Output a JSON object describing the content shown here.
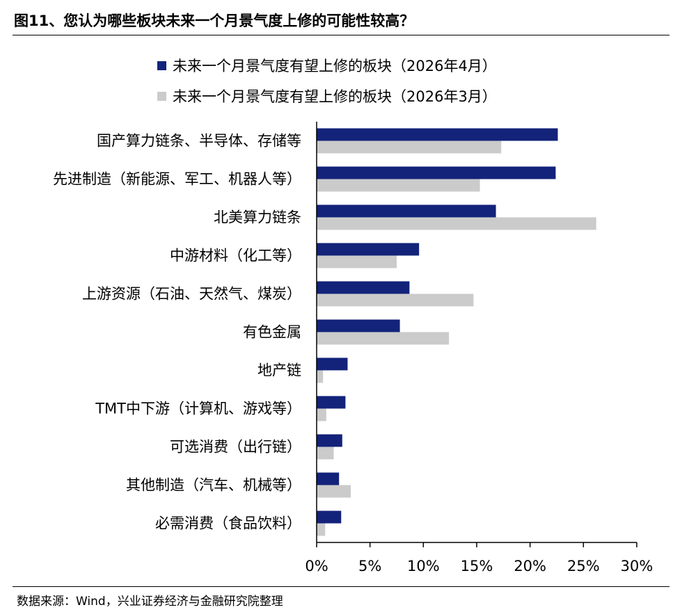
{
  "title": "图11、您认为哪些板块未来一个月景气度上修的可能性较高？",
  "source": "数据来源：Wind，兴业证券经济与金融研究院整理",
  "colors": {
    "series_1": "#13237a",
    "series_2": "#cbcbcb",
    "axis": "#000000"
  },
  "chart_data": {
    "type": "bar",
    "orientation": "horizontal",
    "categories": [
      "国产算力链条、半导体、存储等",
      "先进制造（新能源、军工、机器人等）",
      "北美算力链条",
      "中游材料（化工等）",
      "上游资源（石油、天然气、煤炭）",
      "有色金属",
      "地产链",
      "TMT中下游（计算机、游戏等）",
      "可选消费（出行链）",
      "其他制造（汽车、机械等）",
      "必需消费（食品饮料）"
    ],
    "series": [
      {
        "name": "未来一个月景气度有望上修的板块（2026年4月）",
        "values": [
          22.6,
          22.4,
          16.8,
          9.6,
          8.7,
          7.8,
          2.9,
          2.7,
          2.4,
          2.1,
          2.3
        ]
      },
      {
        "name": "未来一个月景气度有望上修的板块（2026年3月）",
        "values": [
          17.3,
          15.3,
          26.2,
          7.5,
          14.7,
          12.4,
          0.6,
          0.9,
          1.6,
          3.2,
          0.8
        ]
      }
    ],
    "xlim": [
      0,
      30
    ],
    "xticks": [
      "0%",
      "5%",
      "10%",
      "15%",
      "20%",
      "25%",
      "30%"
    ],
    "legend_position": "top",
    "grid": false
  }
}
